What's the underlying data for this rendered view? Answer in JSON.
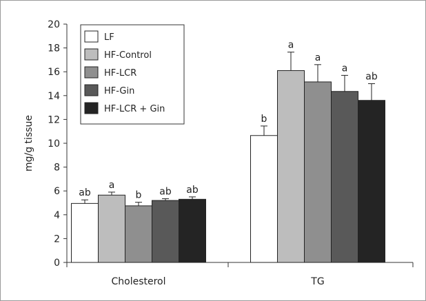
{
  "chart_data": {
    "type": "bar",
    "title": "",
    "xlabel": "",
    "ylabel": "mg/g tissue",
    "ylim": [
      0,
      20
    ],
    "yticks": [
      "0",
      "2",
      "4",
      "6",
      "8",
      "10",
      "12",
      "14",
      "16",
      "18",
      "20"
    ],
    "categories": [
      "Cholesterol",
      "TG"
    ],
    "grid": false,
    "legend_position": "top-left",
    "series": [
      {
        "name": "LF",
        "color": "#ffffff",
        "values": [
          4.95,
          10.65
        ],
        "errors": [
          0.3,
          0.8
        ],
        "labels": [
          "ab",
          "b"
        ]
      },
      {
        "name": "HF-Control",
        "color": "#bdbdbd",
        "values": [
          5.65,
          16.1
        ],
        "errors": [
          0.25,
          1.55
        ],
        "labels": [
          "a",
          "a"
        ]
      },
      {
        "name": "HF-LCR",
        "color": "#8f8f8f",
        "values": [
          4.75,
          15.15
        ],
        "errors": [
          0.3,
          1.45
        ],
        "labels": [
          "b",
          "a"
        ]
      },
      {
        "name": "HF-Gin",
        "color": "#595959",
        "values": [
          5.2,
          14.35
        ],
        "errors": [
          0.15,
          1.35
        ],
        "labels": [
          "ab",
          "a"
        ]
      },
      {
        "name": "HF-LCR + Gin",
        "color": "#242424",
        "values": [
          5.3,
          13.6
        ],
        "errors": [
          0.2,
          1.4
        ],
        "labels": [
          "ab",
          "ab"
        ]
      }
    ]
  }
}
